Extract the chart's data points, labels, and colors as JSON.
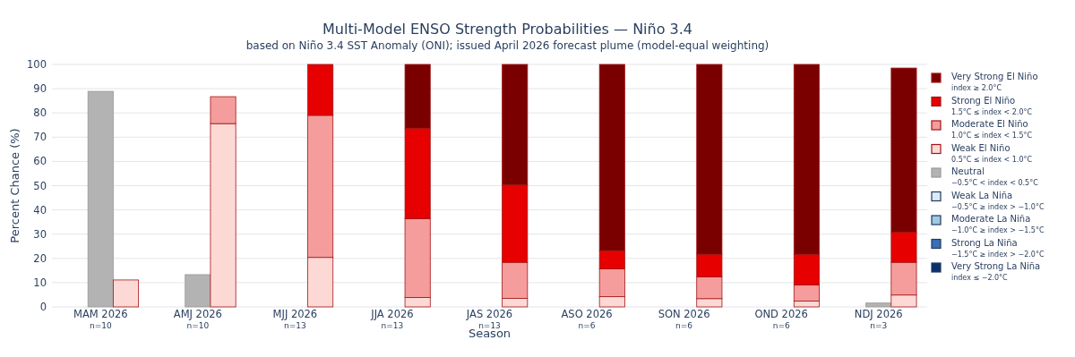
{
  "chart_data": {
    "type": "bar",
    "title": "Multi-Model ENSO Strength Probabilities — Niño 3.4",
    "subtitle": "based on Niño 3.4 SST Anomaly (ONI); issued April 2026 forecast plume (model-equal weighting)",
    "xlabel": "Season",
    "ylabel": "Percent Chance (%)",
    "categories": [
      null,
      "MAM 2026\nn=10",
      null,
      null,
      "AMJ 2026\nn=10",
      null,
      null,
      "MJJ 2026\nn=13",
      null,
      null,
      "JJA 2026\nn=13",
      null,
      null,
      "JAS 2026\nn=13",
      null,
      null,
      "ASO 2026\nn=6",
      null,
      null,
      "SON 2026\nn=6",
      null,
      null,
      "OND 2026\nn=6",
      null,
      null,
      "NDJ 2026\nn=3",
      null
    ],
    "stacked": true,
    "ylim": [
      0,
      100
    ],
    "yticks": [
      0,
      10,
      20,
      30,
      40,
      50,
      60,
      70,
      80,
      90,
      100
    ],
    "grid": "y",
    "legend": "top right",
    "series": [
      {
        "name": "Very Strong La Niña\nindex ≤ −2.0°C",
        "color": "#08306b",
        "values": [
          0,
          null,
          null,
          0,
          null,
          null,
          0,
          null,
          null,
          0,
          null,
          null,
          0,
          null,
          null,
          0,
          null,
          null,
          0,
          null,
          null,
          0,
          null,
          null,
          0,
          null,
          null
        ]
      },
      {
        "name": "Strong La Niña\n−1.5°C ≥ index > −2.0°C",
        "color": "#3b6fb6",
        "values": [
          0,
          null,
          null,
          0,
          null,
          null,
          0,
          null,
          null,
          0,
          null,
          null,
          0,
          null,
          null,
          0,
          null,
          null,
          0,
          null,
          null,
          0,
          null,
          null,
          0,
          null,
          null
        ]
      },
      {
        "name": "Moderate La Niña\n−1.0°C ≥ index > −1.5°C",
        "color": "#9ecae1",
        "values": [
          0,
          null,
          null,
          0,
          null,
          null,
          0,
          null,
          null,
          0,
          null,
          null,
          0,
          null,
          null,
          0,
          null,
          null,
          0,
          null,
          null,
          0,
          null,
          null,
          0,
          null,
          null
        ]
      },
      {
        "name": "Weak La Niña\n−0.5°C ≥ index > −1.0°C",
        "color": "#deebf7",
        "values": [
          0,
          null,
          null,
          0,
          null,
          null,
          0,
          null,
          null,
          0,
          null,
          null,
          0,
          null,
          null,
          0,
          null,
          null,
          0,
          null,
          null,
          0,
          null,
          null,
          0,
          null,
          null
        ]
      },
      {
        "name": "Neutral\n−0.5°C < index < 0.5°C",
        "color": "#b3b3b3",
        "values": [
          null,
          88.9,
          null,
          null,
          13.3,
          null,
          null,
          0,
          null,
          null,
          0,
          null,
          null,
          0,
          null,
          null,
          0,
          null,
          null,
          0,
          null,
          null,
          0,
          null,
          null,
          1.6,
          null
        ]
      },
      {
        "name": "Weak El Niño\n0.5°C ≤ index < 1.0°C",
        "color": "#fdd9d6",
        "values": [
          null,
          null,
          11.1,
          null,
          null,
          75.6,
          null,
          null,
          20.4,
          null,
          null,
          3.9,
          null,
          null,
          3.5,
          null,
          null,
          4.2,
          null,
          null,
          3.4,
          null,
          null,
          2.4,
          null,
          null,
          4.9
        ]
      },
      {
        "name": "Moderate El Niño\n1.0°C ≤ index < 1.5°C",
        "color": "#f59d9d",
        "values": [
          null,
          null,
          0,
          null,
          null,
          11.1,
          null,
          null,
          58.6,
          null,
          null,
          32.5,
          null,
          null,
          14.9,
          null,
          null,
          11.5,
          null,
          null,
          9.0,
          null,
          null,
          6.6,
          null,
          null,
          13.5
        ]
      },
      {
        "name": "Strong El Niño\n1.5°C ≤ index < 2.0°C",
        "color": "#e60000",
        "values": [
          null,
          null,
          0,
          null,
          null,
          0,
          null,
          null,
          21.0,
          null,
          null,
          37.3,
          null,
          null,
          31.9,
          null,
          null,
          7.5,
          null,
          null,
          9.3,
          null,
          null,
          12.7,
          null,
          null,
          12.4
        ]
      },
      {
        "name": "Very Strong El Niño\nindex ≥ 2.0°C",
        "color": "#7a0000",
        "values": [
          null,
          null,
          0,
          null,
          null,
          0,
          null,
          null,
          0,
          null,
          null,
          26.3,
          null,
          null,
          49.7,
          null,
          null,
          76.8,
          null,
          null,
          78.3,
          null,
          null,
          78.3,
          null,
          null,
          67.7
        ]
      }
    ]
  }
}
